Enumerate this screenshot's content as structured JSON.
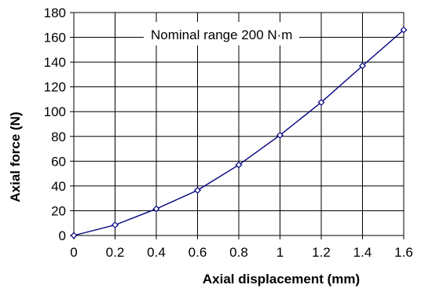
{
  "chart_data": {
    "type": "line",
    "title": "",
    "annotation": "Nominal range 200 N·m",
    "xlabel": "Axial displacement (mm)",
    "ylabel": "Axial force (N)",
    "xlim": [
      0,
      1.6
    ],
    "ylim": [
      0,
      180
    ],
    "x_ticks": [
      "0",
      "0.2",
      "0.4",
      "0.6",
      "0.8",
      "1",
      "1.2",
      "1.4",
      "1.6"
    ],
    "y_ticks": [
      "0",
      "20",
      "40",
      "60",
      "80",
      "100",
      "120",
      "140",
      "160",
      "180"
    ],
    "grid": true,
    "series": [
      {
        "x": [
          0,
          0.2,
          0.4,
          0.6,
          0.8,
          1.0,
          1.2,
          1.4,
          1.6
        ],
        "y": [
          0,
          8.5,
          21.5,
          36.5,
          57,
          81,
          107.5,
          137,
          166
        ],
        "color": "#000080",
        "marker": "diamond"
      }
    ]
  }
}
